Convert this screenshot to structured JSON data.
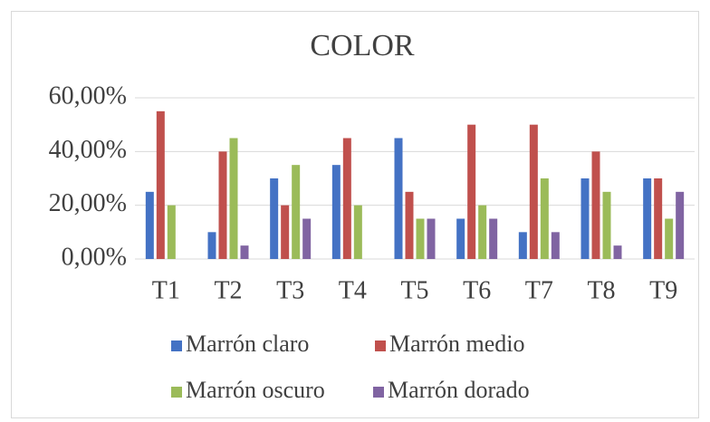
{
  "chart_data": {
    "type": "bar",
    "title": "COLOR",
    "categories": [
      "T1",
      "T2",
      "T3",
      "T4",
      "T5",
      "T6",
      "T7",
      "T8",
      "T9"
    ],
    "series": [
      {
        "name": "Marrón claro",
        "color": "#4472c4",
        "values": [
          25,
          10,
          30,
          35,
          45,
          15,
          10,
          30,
          30
        ]
      },
      {
        "name": "Marrón medio",
        "color": "#c0504d",
        "values": [
          55,
          40,
          20,
          45,
          25,
          50,
          50,
          40,
          30
        ]
      },
      {
        "name": "Marrón oscuro",
        "color": "#9bbb59",
        "values": [
          20,
          45,
          35,
          20,
          15,
          20,
          30,
          25,
          15
        ]
      },
      {
        "name": "Marrón dorado",
        "color": "#8064a2",
        "values": [
          0,
          5,
          15,
          0,
          15,
          15,
          10,
          5,
          25
        ]
      }
    ],
    "ylim": [
      0,
      60
    ],
    "yticks": [
      {
        "value": 0,
        "label": "0,00%"
      },
      {
        "value": 20,
        "label": "20,00%"
      },
      {
        "value": 40,
        "label": "40,00%"
      },
      {
        "value": 60,
        "label": "60,00%"
      }
    ],
    "grid": true,
    "legend": "bottom"
  }
}
